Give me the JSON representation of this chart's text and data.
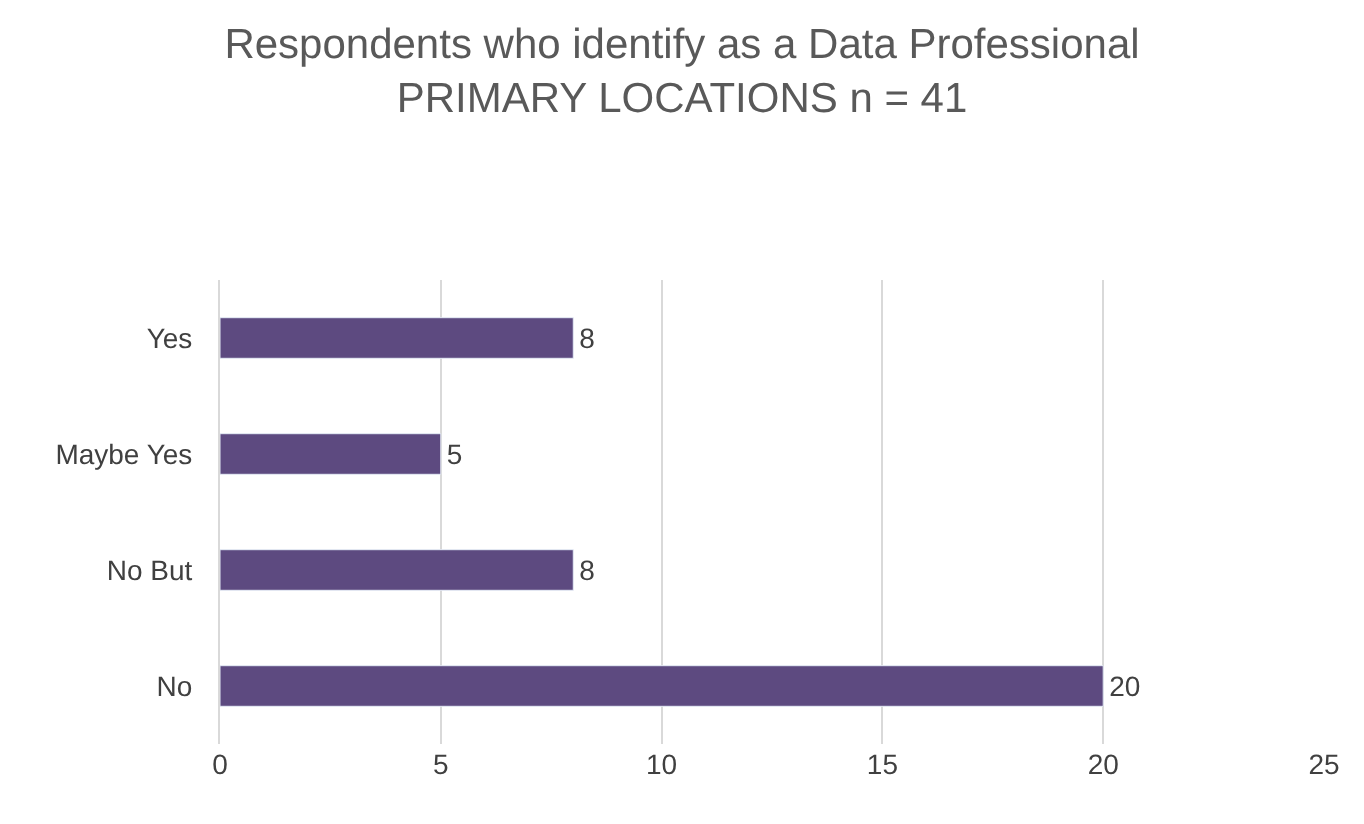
{
  "chart_data": {
    "type": "bar",
    "orientation": "horizontal",
    "title": "Respondents who identify as a Data Professional",
    "subtitle": "PRIMARY LOCATIONS n = 41",
    "categories": [
      "Yes",
      "Maybe Yes",
      "No But",
      "No"
    ],
    "values": [
      8,
      5,
      8,
      20
    ],
    "color": "#5d4a80",
    "xlim": [
      0,
      25
    ],
    "xticks": [
      0,
      5,
      10,
      15,
      20,
      25
    ],
    "grid": "x",
    "data_labels": true
  }
}
